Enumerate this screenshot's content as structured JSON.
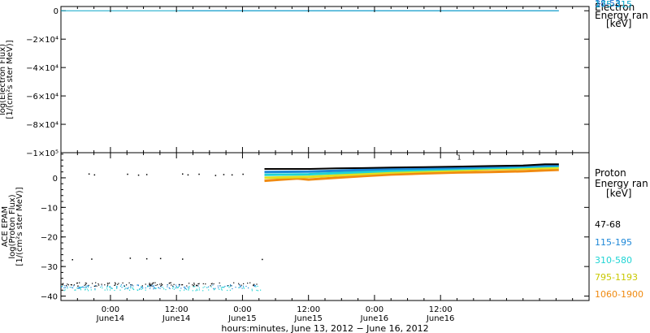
{
  "chart_data": [
    {
      "type": "line",
      "panel": "top",
      "ylabel_lines": [
        "log(Electron Flux)",
        "[1/(cm²s ster MeV)]"
      ],
      "y_ticks": [
        "0",
        "−2×10⁴",
        "−4×10⁴",
        "−6×10⁴",
        "−8×10⁴",
        "−1×10⁵"
      ],
      "y_tick_values": [
        0,
        -20000,
        -40000,
        -60000,
        -80000,
        -100000
      ],
      "ylim": [
        -100000,
        3000
      ],
      "legend_lines": [
        "Electron",
        "Energy ran",
        "[keV]"
      ],
      "legend_entries": [
        {
          "label": "38-53",
          "color": "#1e6fd0"
        },
        {
          "label": "175-315",
          "color": "#0aa6c8"
        }
      ],
      "series": [
        {
          "label_ref": 0,
          "color": "#1e6fd0",
          "x": [
            21.5,
            90.5
          ],
          "y": [
            0,
            0
          ]
        },
        {
          "label_ref": 1,
          "color": "#0aa6c8",
          "x": [
            0,
            90.5
          ],
          "y": [
            0,
            0
          ]
        }
      ]
    },
    {
      "type": "line",
      "panel": "bottom",
      "ylabel_lines": [
        "ACE EPAM",
        "log(Proton Flux)",
        "[1/(cm²s ster MeV)]"
      ],
      "y_ticks": [
        "0",
        "−10",
        "−20",
        "−30",
        "−40"
      ],
      "y_tick_values": [
        0,
        -10,
        -20,
        -30,
        -40
      ],
      "ylim": [
        -41.5,
        8.5
      ],
      "legend_lines": [
        "Proton",
        "Energy ran",
        "[keV]"
      ],
      "legend_entries": [
        {
          "label": "47-68",
          "color": "#000000"
        },
        {
          "label": "115-195",
          "color": "#1e88d8"
        },
        {
          "label": "310-580",
          "color": "#20d4d4"
        },
        {
          "label": "795-1193",
          "color": "#e0e020"
        },
        {
          "label": "1060-1900",
          "color": "#f08a10"
        }
      ],
      "series": [
        {
          "label_ref": 0,
          "color": "#000000",
          "x": [
            37,
            45,
            50,
            55,
            60,
            66,
            72,
            78,
            84,
            88,
            90.5
          ],
          "y": [
            3.0,
            3.0,
            3.2,
            3.3,
            3.5,
            3.6,
            3.8,
            4.0,
            4.2,
            4.6,
            4.6
          ]
        },
        {
          "label_ref": 1,
          "color": "#1e88d8",
          "x": [
            37,
            45,
            50,
            55,
            60,
            66,
            72,
            78,
            84,
            88,
            90.5
          ],
          "y": [
            2.0,
            2.1,
            2.4,
            2.7,
            3.0,
            3.2,
            3.4,
            3.7,
            4.0,
            4.2,
            4.3
          ]
        },
        {
          "label_ref": 2,
          "color": "#20d4d4",
          "x": [
            37,
            45,
            50,
            55,
            60,
            66,
            72,
            78,
            84,
            88,
            90.5
          ],
          "y": [
            1.0,
            1.2,
            1.6,
            2.0,
            2.4,
            2.7,
            3.0,
            3.3,
            3.6,
            3.9,
            4.0
          ]
        },
        {
          "label_ref": 3,
          "color": "#e0e020",
          "x": [
            37,
            45,
            50,
            55,
            60,
            66,
            72,
            78,
            84,
            88,
            90.5
          ],
          "y": [
            0.0,
            0.3,
            0.8,
            1.3,
            1.8,
            2.2,
            2.5,
            2.9,
            3.1,
            3.3,
            3.4
          ]
        },
        {
          "label_ref": 4,
          "color": "#f08a10",
          "x": [
            37,
            40,
            43,
            45,
            50,
            55,
            60,
            66,
            72,
            78,
            84,
            88,
            90.5
          ],
          "y": [
            -1.0,
            -0.6,
            -0.2,
            -0.6,
            0.0,
            0.6,
            1.1,
            1.5,
            1.8,
            2.0,
            2.2,
            2.5,
            2.7
          ]
        }
      ],
      "scatter": {
        "points": [
          [
            5,
            1.5
          ],
          [
            6,
            1.2
          ],
          [
            12,
            1.4
          ],
          [
            14,
            1.1
          ],
          [
            15.5,
            1.3
          ],
          [
            22,
            1.5
          ],
          [
            23,
            1.2
          ],
          [
            25,
            1.4
          ],
          [
            28,
            1.0
          ],
          [
            29.5,
            1.3
          ],
          [
            31,
            1.2
          ],
          [
            33,
            1.4
          ],
          [
            2,
            -27.5
          ],
          [
            5.5,
            -27.3
          ],
          [
            12.5,
            -27.0
          ],
          [
            15.5,
            -27.2
          ],
          [
            18,
            -27.1
          ],
          [
            22,
            -27.3
          ],
          [
            36.5,
            -27.4
          ]
        ],
        "noise_ranges": [
          {
            "x": [
              0,
              36.5
            ],
            "y": [
              -36.5,
              -35.3
            ],
            "color": "#000000"
          },
          {
            "x": [
              0,
              36.5
            ],
            "y": [
              -37.4,
              -36.0
            ],
            "color": "#1e88d8"
          },
          {
            "x": [
              0,
              36.5
            ],
            "y": [
              -38.0,
              -36.5
            ],
            "color": "#20d4d4"
          }
        ]
      },
      "annotation_mark": {
        "x": 72,
        "y": 6.2,
        "text": "1"
      }
    }
  ],
  "x_axis": {
    "xlim": [
      0,
      96
    ],
    "ticks": [
      {
        "x": 9,
        "line1": "0:00",
        "line2": "June14"
      },
      {
        "x": 21,
        "line1": "12:00",
        "line2": "June14"
      },
      {
        "x": 33,
        "line1": "0:00",
        "line2": "June15"
      },
      {
        "x": 45,
        "line1": "12:00",
        "line2": "June15"
      },
      {
        "x": 57,
        "line1": "0:00",
        "line2": "June16"
      },
      {
        "x": 69,
        "line1": "12:00",
        "line2": "June16"
      }
    ],
    "label": "hours:minutes, June 13, 2012 − June 16, 2012"
  }
}
